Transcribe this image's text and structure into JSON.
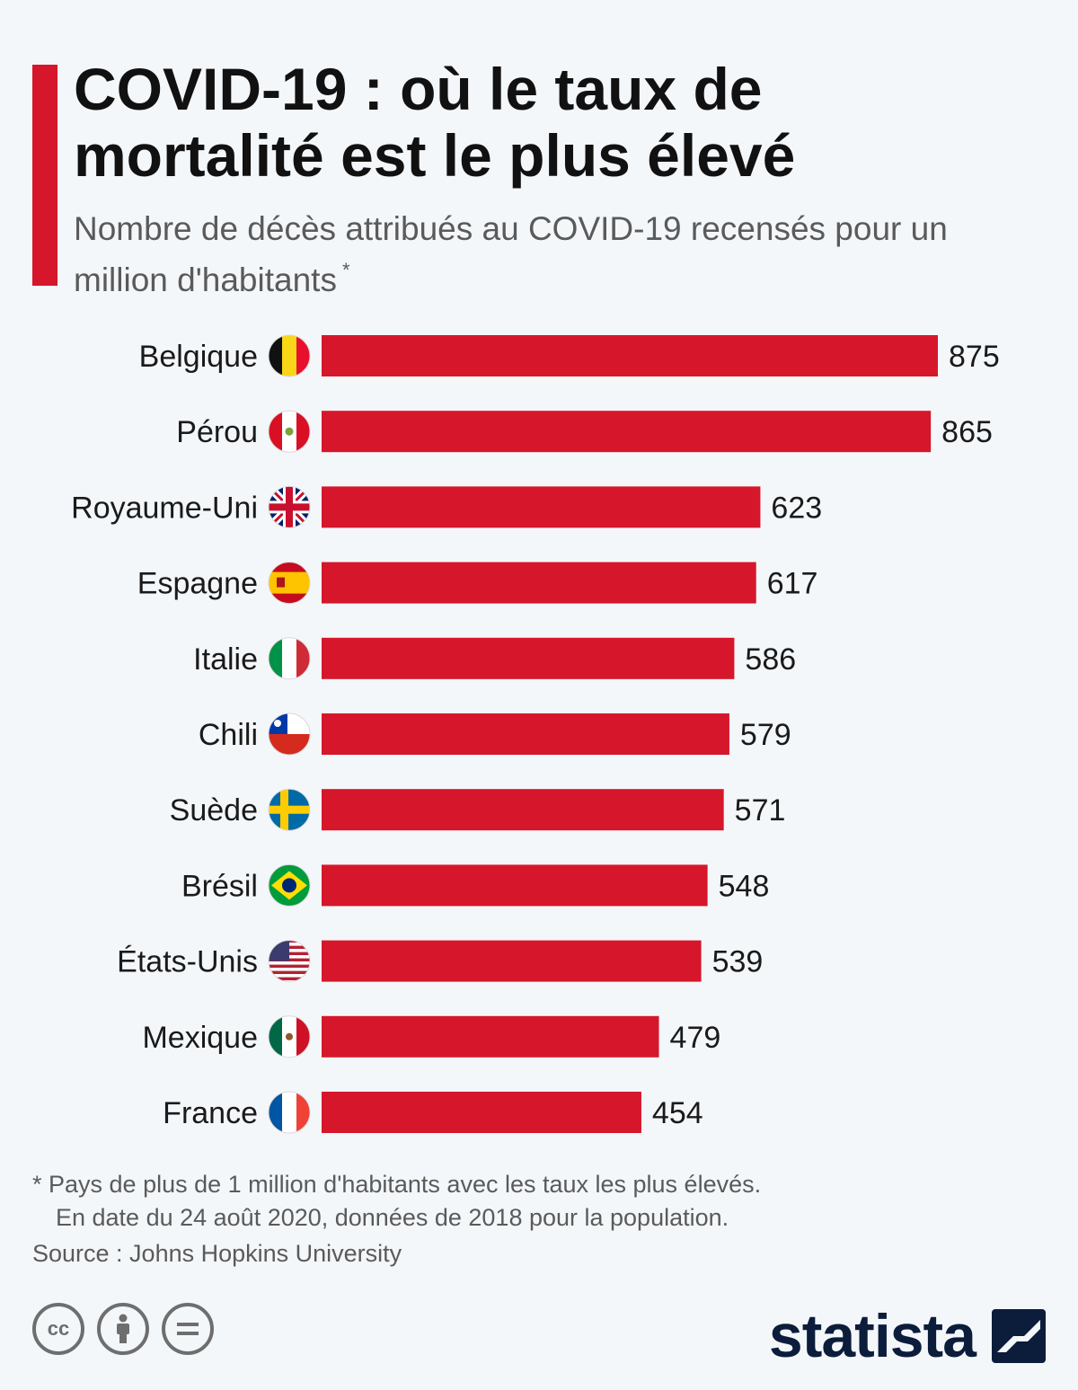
{
  "header": {
    "title": "COVID-19 : où le taux de\nmortalité est le plus élevé",
    "subtitle": "Nombre de décès attribués au COVID-19 recensés pour un million d'habitants",
    "subtitle_mark": "*"
  },
  "colors": {
    "accent": "#d6162a",
    "bar": "#d6162a",
    "brand": "#0c1c3b"
  },
  "chart_data": {
    "type": "bar",
    "orientation": "horizontal",
    "categories": [
      "Belgique",
      "Pérou",
      "Royaume-Uni",
      "Espagne",
      "Italie",
      "Chili",
      "Suède",
      "Brésil",
      "États-Unis",
      "Mexique",
      "France"
    ],
    "values": [
      875,
      865,
      623,
      617,
      586,
      579,
      571,
      548,
      539,
      479,
      454
    ],
    "data_labels": [
      "875",
      "865",
      "623",
      "617",
      "586",
      "579",
      "571",
      "548",
      "539",
      "479",
      "454"
    ],
    "flags": [
      "belgium-flag",
      "peru-flag",
      "uk-flag",
      "spain-flag",
      "italy-flag",
      "chile-flag",
      "sweden-flag",
      "brazil-flag",
      "usa-flag",
      "mexico-flag",
      "france-flag"
    ],
    "grid": false,
    "legend": "none"
  },
  "footer": {
    "note_line1": "* Pays de plus de 1 million d'habitants avec les taux les plus élevés.",
    "note_line2": "En date du 24 août 2020, données de 2018 pour la population.",
    "source": "Source : Johns Hopkins University",
    "license_icons": [
      "cc-icon",
      "by-icon",
      "nd-icon"
    ],
    "brand": "statista"
  }
}
